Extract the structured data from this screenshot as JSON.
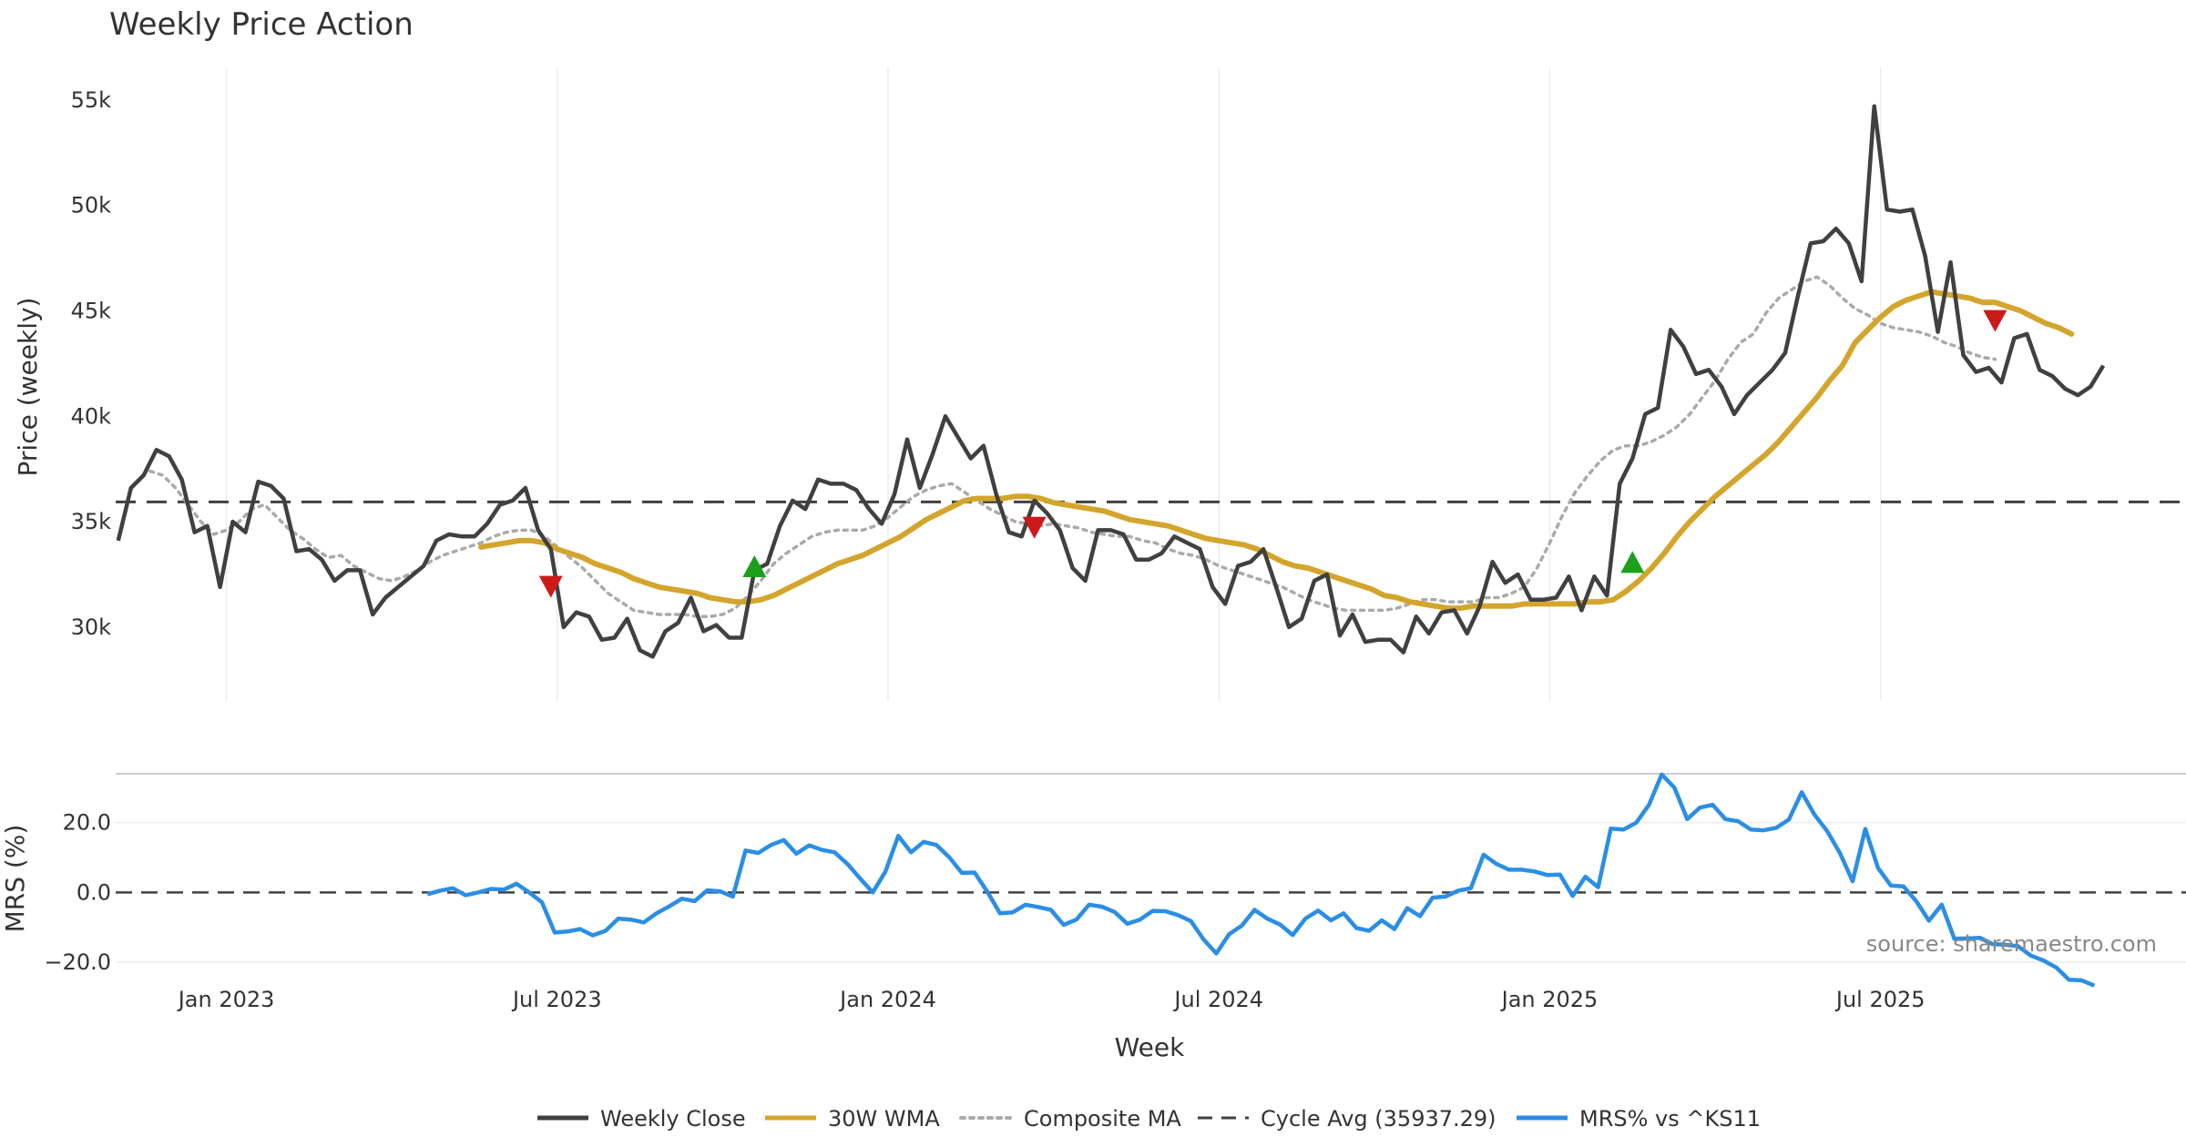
{
  "chart_data": {
    "title": "Weekly Price Action",
    "source_note": "source: sharemaestro.com",
    "xlabel": "Week",
    "x_ticks": [
      {
        "label": "Jan 2023",
        "week": 16
      },
      {
        "label": "Jul 2023",
        "week": 42
      },
      {
        "label": "Jan 2024",
        "week": 68
      },
      {
        "label": "Jul 2024",
        "week": 94
      },
      {
        "label": "Jan 2025",
        "week": 120
      },
      {
        "label": "Jul 2025",
        "week": 146
      }
    ],
    "x_range": [
      7.3,
      170
    ],
    "price_panel": {
      "ylabel": "Price (weekly)",
      "ylim": [
        26500,
        56500
      ],
      "y_ticks": [
        {
          "label": "30k",
          "value": 30000
        },
        {
          "label": "35k",
          "value": 35000
        },
        {
          "label": "40k",
          "value": 40000
        },
        {
          "label": "45k",
          "value": 45000
        },
        {
          "label": "50k",
          "value": 50000
        },
        {
          "label": "55k",
          "value": 55000
        }
      ],
      "cycle_avg": 35937.29,
      "weekly_close": {
        "start_week": 7.5,
        "values": [
          34100,
          36600,
          37200,
          38400,
          38100,
          37000,
          34500,
          34800,
          31900,
          35000,
          34500,
          36900,
          36700,
          36100,
          33600,
          33700,
          33200,
          32200,
          32700,
          32700,
          30600,
          31400,
          31900,
          32400,
          32900,
          34100,
          34400,
          34300,
          34300,
          34900,
          35800,
          36000,
          36600,
          34600,
          33700,
          30000,
          30700,
          30500,
          29400,
          29500,
          30400,
          28900,
          28600,
          29800,
          30200,
          31400,
          29800,
          30100,
          29500,
          29500,
          32700,
          33000,
          34800,
          36000,
          35600,
          37000,
          36800,
          36800,
          36500,
          35600,
          34900,
          36300,
          38900,
          36600,
          38200,
          40000,
          39000,
          38000,
          38600,
          36300,
          34500,
          34300,
          36000,
          35400,
          34600,
          32800,
          32200,
          34600,
          34600,
          34400,
          33200,
          33200,
          33500,
          34300,
          34000,
          33700,
          31900,
          31100,
          32900,
          33100,
          33700,
          31900,
          30000,
          30400,
          32200,
          32500,
          29600,
          30600,
          29300,
          29400,
          29400,
          28800,
          30500,
          29700,
          30700,
          30800,
          29700,
          31000,
          33100,
          32100,
          32500,
          31300,
          31300,
          31400,
          32400,
          30800,
          32400,
          31500,
          36800,
          38000,
          40100,
          40400,
          44100,
          43300,
          42000,
          42200,
          41400,
          40100,
          41000,
          41600,
          42200,
          43000,
          45700,
          48200,
          48300,
          48900,
          48200,
          46400,
          54700,
          49800,
          49700,
          49800,
          47600,
          44000,
          47300,
          42900,
          42100,
          42300,
          41600,
          43700,
          43900,
          42200,
          41900,
          41300,
          41000,
          41400,
          42400
        ]
      },
      "wma_30w": {
        "start_week": 36,
        "values": [
          33800,
          33900,
          34000,
          34100,
          34100,
          34000,
          33700,
          33500,
          33300,
          33000,
          32800,
          32600,
          32300,
          32100,
          31900,
          31800,
          31700,
          31600,
          31400,
          31300,
          31200,
          31200,
          31300,
          31500,
          31800,
          32100,
          32400,
          32700,
          33000,
          33200,
          33400,
          33700,
          34000,
          34300,
          34700,
          35100,
          35400,
          35700,
          36000,
          36100,
          36100,
          36100,
          36200,
          36200,
          36100,
          35900,
          35800,
          35700,
          35600,
          35500,
          35300,
          35100,
          35000,
          34900,
          34800,
          34600,
          34400,
          34200,
          34100,
          34000,
          33900,
          33700,
          33400,
          33100,
          32900,
          32800,
          32600,
          32400,
          32200,
          32000,
          31800,
          31500,
          31400,
          31200,
          31100,
          31000,
          30900,
          30900,
          31000,
          31000,
          31000,
          31000,
          31100,
          31100,
          31100,
          31100,
          31100,
          31200,
          31200,
          31300,
          31700,
          32200,
          32800,
          33500,
          34300,
          35000,
          35600,
          36200,
          36700,
          37200,
          37700,
          38200,
          38800,
          39500,
          40200,
          40900,
          41700,
          42400,
          43500,
          44100,
          44700,
          45200,
          45500,
          45700,
          45900,
          45800,
          45700,
          45600,
          45400,
          45400,
          45200,
          45000,
          44700,
          44400,
          44200,
          43900
        ]
      },
      "composite_ma": {
        "start_week": 10,
        "values": [
          37400,
          37200,
          36600,
          35800,
          35000,
          34400,
          34600,
          35000,
          35600,
          35800,
          35200,
          34600,
          34200,
          33700,
          33300,
          33400,
          32900,
          32600,
          32300,
          32200,
          32400,
          32700,
          33100,
          33400,
          33600,
          33800,
          34000,
          34300,
          34500,
          34600,
          34600,
          34300,
          33800,
          33300,
          32800,
          32200,
          31600,
          31200,
          30800,
          30700,
          30600,
          30600,
          30600,
          30500,
          30500,
          30600,
          30900,
          31500,
          32200,
          33000,
          33500,
          33900,
          34300,
          34500,
          34600,
          34600,
          34600,
          34800,
          35200,
          35700,
          36200,
          36500,
          36700,
          36800,
          36400,
          36000,
          35600,
          35300,
          35000,
          34900,
          34800,
          34900,
          34800,
          34700,
          34500,
          34400,
          34300,
          34300,
          34100,
          34000,
          33700,
          33500,
          33400,
          33200,
          32900,
          32700,
          32500,
          32300,
          32100,
          31900,
          31600,
          31300,
          31100,
          30900,
          30800,
          30800,
          30800,
          30800,
          30900,
          31100,
          31300,
          31300,
          31200,
          31200,
          31200,
          31400,
          31400,
          31600,
          31900,
          32800,
          34000,
          35300,
          36400,
          37200,
          37900,
          38400,
          38600,
          38600,
          38800,
          39100,
          39500,
          40100,
          40900,
          41700,
          42700,
          43500,
          43900,
          44900,
          45600,
          46000,
          46400,
          46600,
          46200,
          45600,
          45100,
          44800,
          44400,
          44200,
          44100,
          44000,
          43800,
          43500,
          43300,
          43000,
          42800,
          42700
        ]
      },
      "signals": [
        {
          "type": "sell",
          "week": 41.5,
          "price": 32000
        },
        {
          "type": "buy",
          "week": 57.5,
          "price": 32800
        },
        {
          "type": "sell",
          "week": 79.5,
          "price": 34800
        },
        {
          "type": "buy",
          "week": 126.5,
          "price": 33000
        },
        {
          "type": "sell",
          "week": 155,
          "price": 44600
        }
      ]
    },
    "mrs_panel": {
      "ylabel": "MRS (%)",
      "ylim": [
        -26,
        34
      ],
      "y_ticks": [
        {
          "label": "20.0",
          "value": 20
        },
        {
          "label": "0.0",
          "value": 0
        },
        {
          "label": "−20.0",
          "value": -20
        }
      ],
      "mrs": {
        "start_week": 31.8,
        "values": [
          -0.5,
          0.5,
          1.2,
          -0.8,
          0,
          1,
          0.8,
          2.5,
          0,
          -2.8,
          -11.5,
          -11.2,
          -10.5,
          -12.3,
          -11,
          -7.5,
          -7.8,
          -8.6,
          -6,
          -4,
          -1.8,
          -2.5,
          0.6,
          0.3,
          -1.2,
          12,
          11.3,
          13.6,
          15,
          11.1,
          13.5,
          12.2,
          11.5,
          8.2,
          4,
          0,
          6,
          16.2,
          11.5,
          14.5,
          13.6,
          10.1,
          5.6,
          5.7,
          0.2,
          -6,
          -5.7,
          -3.5,
          -4.2,
          -5,
          -9.3,
          -7.8,
          -3.5,
          -4.1,
          -5.6,
          -9,
          -7.8,
          -5.3,
          -5.4,
          -6.5,
          -8.2,
          -13.5,
          -17.5,
          -12,
          -9.5,
          -5,
          -7.5,
          -9.2,
          -12.2,
          -7.5,
          -5.2,
          -8,
          -6,
          -10.2,
          -11,
          -8,
          -10.5,
          -4.5,
          -6.8,
          -1.5,
          -1.2,
          0.5,
          1.2,
          10.8,
          8.2,
          6.5,
          6.5,
          6,
          5,
          5.1,
          -1,
          4.5,
          1.5,
          18.3,
          18,
          20,
          25.1,
          33.8,
          30,
          21,
          24.3,
          25.1,
          21,
          20.4,
          18,
          17.8,
          18.5,
          20.9,
          28.7,
          22.3,
          17.6,
          11.3,
          3.2,
          18.2,
          7,
          2,
          1.7,
          -2.5,
          -8.1,
          -3.5,
          -13.3,
          -13.2,
          -13,
          -14.8,
          -15,
          -15.4,
          -18.1,
          -19.5,
          -21.5,
          -25,
          -25.2,
          -26.7
        ]
      }
    },
    "legend": [
      {
        "label": "Weekly Close",
        "style": "solid",
        "color": "#404040"
      },
      {
        "label": "30W WMA",
        "style": "solid",
        "color": "#d4a52c"
      },
      {
        "label": "Composite MA",
        "style": "dotted",
        "color": "#aaaaaa"
      },
      {
        "label": "Cycle Avg (35937.29)",
        "style": "dashed",
        "color": "#404040"
      },
      {
        "label": "MRS% vs ^KS11",
        "style": "solid",
        "color": "#2b8ee4"
      }
    ],
    "colors": {
      "close": "#404040",
      "wma": "#d4a52c",
      "composite": "#aaaaaa",
      "cycle": "#404040",
      "mrs": "#2b8ee4",
      "buy": "#1aa01a",
      "sell": "#cc1a1a",
      "grid": "#ebebeb"
    }
  }
}
